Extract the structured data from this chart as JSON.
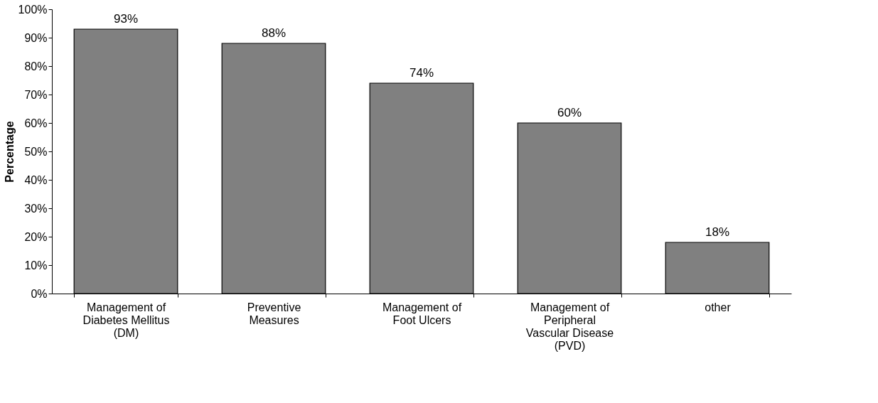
{
  "chart_data": {
    "type": "bar",
    "ylabel": "Percentage",
    "categories": [
      "Management of Diabetes Mellitus (DM)",
      "Preventive Measures",
      "Management of Foot Ulcers",
      "Management of Peripheral Vascular Disease (PVD)",
      "other"
    ],
    "values": [
      93,
      88,
      74,
      60,
      18
    ],
    "value_labels": [
      "93%",
      "88%",
      "74%",
      "60%",
      "18%"
    ],
    "color": "#808080",
    "ylim": [
      0,
      100
    ],
    "yticks": [
      {
        "value": 0,
        "label": "0%"
      },
      {
        "value": 10,
        "label": "10%"
      },
      {
        "value": 20,
        "label": "20%"
      },
      {
        "value": 30,
        "label": "30%"
      },
      {
        "value": 40,
        "label": "40%"
      },
      {
        "value": 50,
        "label": "50%"
      },
      {
        "value": 60,
        "label": "60%"
      },
      {
        "value": 70,
        "label": "70%"
      },
      {
        "value": 80,
        "label": "80%"
      },
      {
        "value": 90,
        "label": "90%"
      },
      {
        "value": 100,
        "label": "100%"
      }
    ],
    "grid": false
  }
}
